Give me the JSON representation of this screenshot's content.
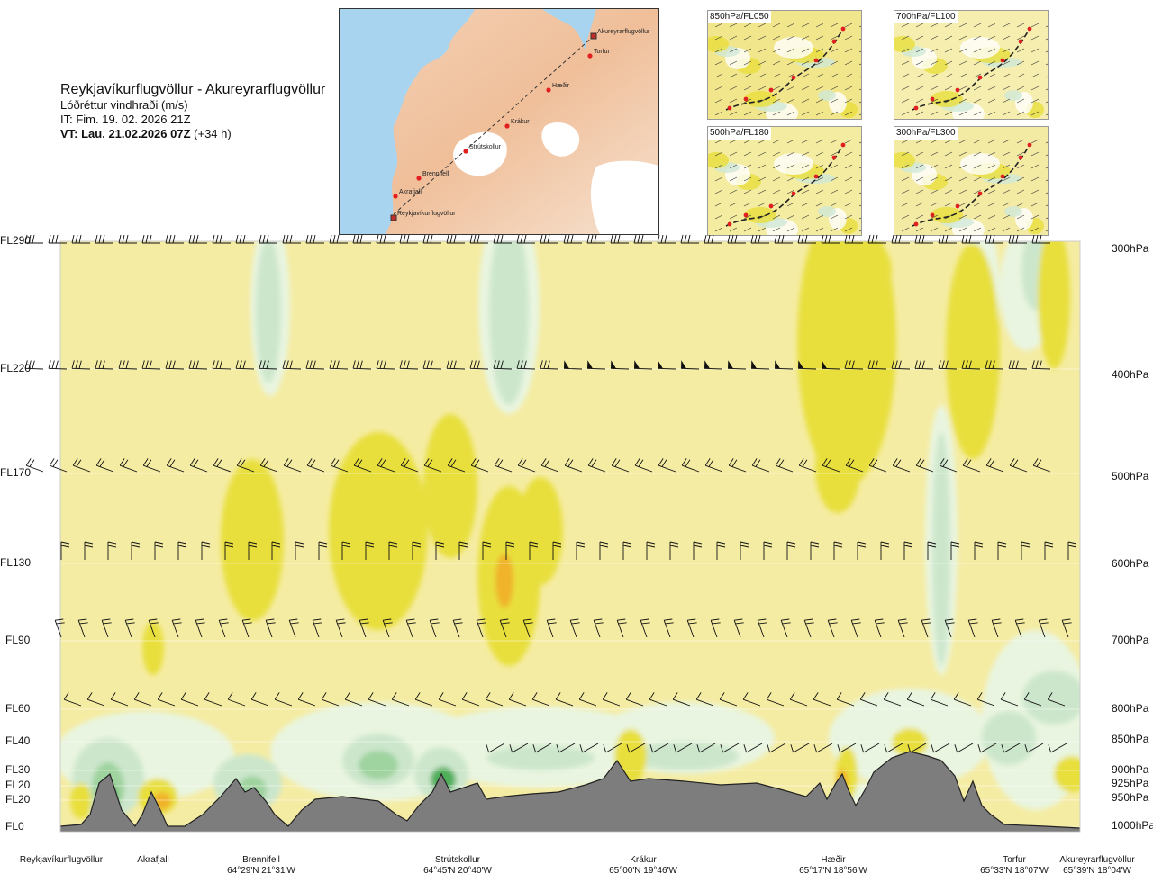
{
  "header": {
    "route": "Reykjavíkurflugvöllur - Akureyrarflugvöllur",
    "variable": "Lóðréttur vindhraði (m/s)",
    "issue_time": "IT: Fim. 19. 02. 2026 21Z",
    "valid_time_bold": "VT: Lau. 21.02.2026 07Z",
    "valid_time_offset": "(+34 h)"
  },
  "route_map": {
    "points": [
      {
        "name": "Akureyrarflugvöllur"
      },
      {
        "name": "Torfur"
      },
      {
        "name": "Hæðir"
      },
      {
        "name": "Krákur"
      },
      {
        "name": "Strútskollur"
      },
      {
        "name": "Brennifell"
      },
      {
        "name": "Akrafjall"
      },
      {
        "name": "Reykjavíkurflugvöllur"
      }
    ]
  },
  "insets": [
    {
      "label": "850hPa/FL050",
      "color": "#f2e68c"
    },
    {
      "label": "700hPa/FL100",
      "color": "#f5eeae"
    },
    {
      "label": "500hPa/FL180",
      "color": "#f4eca0"
    },
    {
      "label": "300hPa/FL300",
      "color": "#f3eaa4"
    }
  ],
  "chart_data": {
    "type": "heatmap",
    "left_axis_labels": [
      "FL290",
      "FL220",
      "FL170",
      "FL130",
      "FL90",
      "FL60",
      "FL40",
      "FL30",
      "FL20",
      "FL20",
      "FL0"
    ],
    "right_axis_labels": [
      "300hPa",
      "400hPa",
      "500hPa",
      "600hPa",
      "700hPa",
      "800hPa",
      "850hPa",
      "900hPa",
      "925hPa",
      "950hPa",
      "1000hPa"
    ],
    "waypoints": [
      {
        "name": "Reykjavíkurflugvöllur",
        "coord": ""
      },
      {
        "name": "Akrafjall",
        "coord": ""
      },
      {
        "name": "Brennifell",
        "coord": "64°29'N 21°31'W"
      },
      {
        "name": "Strútskollur",
        "coord": "64°45'N 20°40'W"
      },
      {
        "name": "Krákur",
        "coord": "65°00'N 19°46'W"
      },
      {
        "name": "Hæðir",
        "coord": "65°17'N 18°56'W"
      },
      {
        "name": "Torfur",
        "coord": "65°33'N 18°07'W"
      },
      {
        "name": "Akureyrarflugvöllur",
        "coord": "65°39'N 18°04'W"
      }
    ],
    "colors": {
      "background": "#f5eca3",
      "strong_up": "#e8df3c",
      "up_orange": "#f0b32a",
      "weak_down": "#e9f5e0",
      "down": "#cce6cc",
      "down_mid": "#9fd39f",
      "down_strong": "#4fae5a",
      "terrain": "#7d7d7d",
      "barb": "#111111"
    }
  }
}
